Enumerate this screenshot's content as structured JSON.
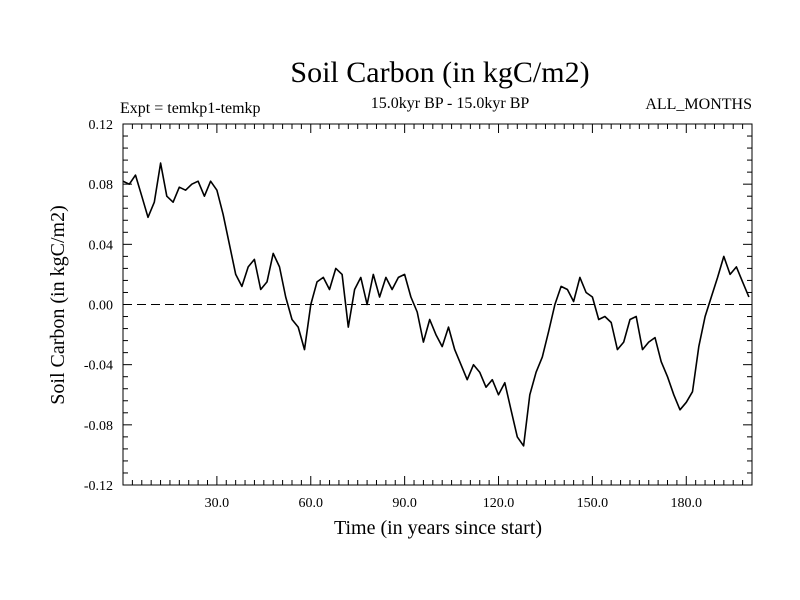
{
  "chart_data": {
    "type": "line",
    "title": "Soil Carbon (in kgC/m2)",
    "subtitle": "15.0kyr BP - 15.0kyr BP",
    "expt_label": "Expt = temkp1-temkp",
    "months_label": "ALL_MONTHS",
    "xlabel": "Time (in years since start)",
    "ylabel": "Soil Carbon (in kgC/m2)",
    "xlim": [
      0,
      201
    ],
    "ylim": [
      -0.12,
      0.12
    ],
    "x_ticks": [
      30,
      60,
      90,
      120,
      150,
      180
    ],
    "x_tick_labels": [
      "30.0",
      "60.0",
      "90.0",
      "120.0",
      "150.0",
      "180.0"
    ],
    "y_ticks": [
      -0.12,
      -0.08,
      -0.04,
      0.0,
      0.04,
      0.08,
      0.12
    ],
    "y_tick_labels": [
      "-0.12",
      "-0.08",
      "-0.04",
      "0.00",
      "0.04",
      "0.08",
      "0.12"
    ],
    "reference_line": {
      "y": 0.0,
      "style": "dashed"
    },
    "series": [
      {
        "name": "Soil Carbon",
        "color": "#000000",
        "x": [
          0,
          2,
          4,
          6,
          8,
          10,
          12,
          14,
          16,
          18,
          20,
          22,
          24,
          26,
          28,
          30,
          32,
          34,
          36,
          38,
          40,
          42,
          44,
          46,
          48,
          50,
          52,
          54,
          56,
          58,
          60,
          62,
          64,
          66,
          68,
          70,
          72,
          74,
          76,
          78,
          80,
          82,
          84,
          86,
          88,
          90,
          92,
          94,
          96,
          98,
          100,
          102,
          104,
          106,
          108,
          110,
          112,
          114,
          116,
          118,
          120,
          122,
          124,
          126,
          128,
          130,
          132,
          134,
          136,
          138,
          140,
          142,
          144,
          146,
          148,
          150,
          152,
          154,
          156,
          158,
          160,
          162,
          164,
          166,
          168,
          170,
          172,
          174,
          176,
          178,
          180,
          182,
          184,
          186,
          188,
          190,
          192,
          194,
          196,
          198,
          200
        ],
        "values": [
          0.082,
          0.08,
          0.086,
          0.072,
          0.058,
          0.068,
          0.094,
          0.072,
          0.068,
          0.078,
          0.076,
          0.08,
          0.082,
          0.072,
          0.082,
          0.076,
          0.06,
          0.04,
          0.02,
          0.012,
          0.025,
          0.03,
          0.01,
          0.015,
          0.034,
          0.025,
          0.005,
          -0.01,
          -0.015,
          -0.03,
          0.0,
          0.015,
          0.018,
          0.01,
          0.024,
          0.02,
          -0.015,
          0.01,
          0.018,
          0.0,
          0.02,
          0.005,
          0.018,
          0.01,
          0.018,
          0.02,
          0.005,
          -0.005,
          -0.025,
          -0.01,
          -0.02,
          -0.028,
          -0.015,
          -0.03,
          -0.04,
          -0.05,
          -0.04,
          -0.045,
          -0.055,
          -0.05,
          -0.06,
          -0.052,
          -0.07,
          -0.088,
          -0.094,
          -0.06,
          -0.045,
          -0.035,
          -0.018,
          0.0,
          0.012,
          0.01,
          0.002,
          0.018,
          0.008,
          0.005,
          -0.01,
          -0.008,
          -0.012,
          -0.03,
          -0.025,
          -0.01,
          -0.008,
          -0.03,
          -0.025,
          -0.022,
          -0.038,
          -0.048,
          -0.06,
          -0.07,
          -0.065,
          -0.058,
          -0.028,
          -0.008,
          0.005,
          0.018,
          0.032,
          0.02,
          0.025,
          0.015,
          0.005
        ]
      }
    ]
  }
}
